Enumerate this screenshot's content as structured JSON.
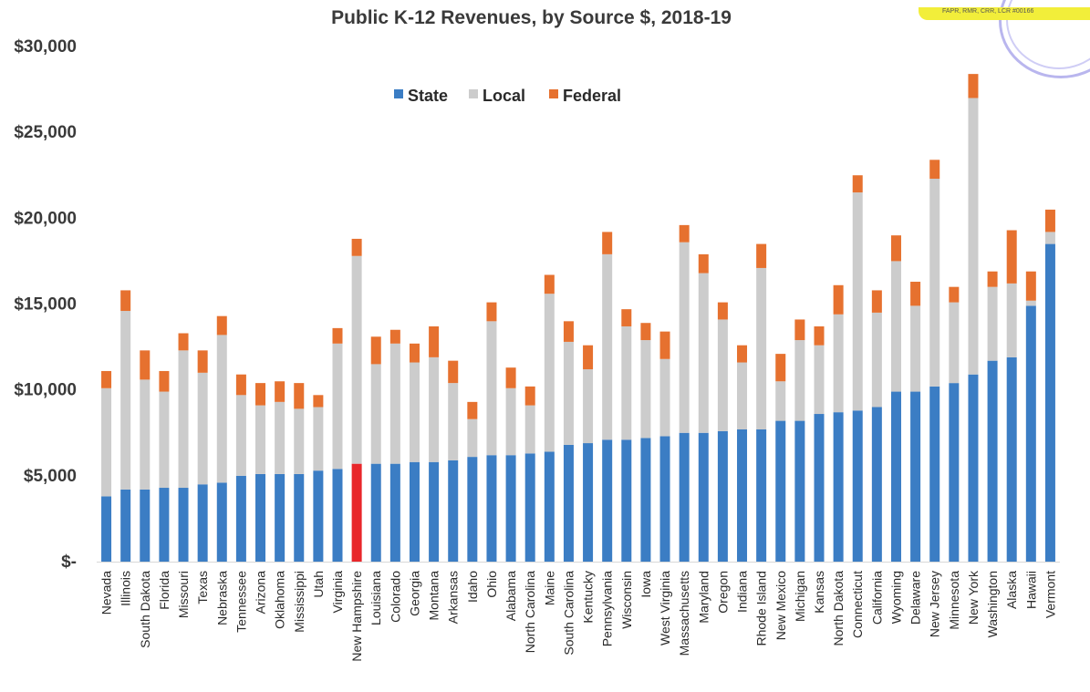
{
  "stamp_text": "FAPR, RMR, CRR, LCR #00166",
  "chart_data": {
    "type": "bar",
    "stacked": true,
    "title": "Public K-12 Revenues, by Source $, 2018-19",
    "xlabel": "",
    "ylabel": "",
    "ylim": [
      0,
      30000
    ],
    "yticks": [
      0,
      5000,
      10000,
      15000,
      20000,
      25000,
      30000
    ],
    "ytick_labels": [
      "$-",
      "$5,000",
      "$10,000",
      "$15,000",
      "$20,000",
      "$25,000",
      "$30,000"
    ],
    "grid": false,
    "legend_position": "top-center",
    "highlight": {
      "category": "New Hampshire",
      "color": "#e8262a"
    },
    "categories": [
      "Nevada",
      "Illinois",
      "South Dakota",
      "Florida",
      "Missouri",
      "Texas",
      "Nebraska",
      "Tennessee",
      "Arizona",
      "Oklahoma",
      "Mississippi",
      "Utah",
      "Virginia",
      "New Hampshire",
      "Louisiana",
      "Colorado",
      "Georgia",
      "Montana",
      "Arkansas",
      "Idaho",
      "Ohio",
      "Alabama",
      "North Carolina",
      "Maine",
      "South Carolina",
      "Kentucky",
      "Pennsylvania",
      "Wisconsin",
      "Iowa",
      "West Virginia",
      "Massachusetts",
      "Maryland",
      "Oregon",
      "Indiana",
      "Rhode Island",
      "New Mexico",
      "Michigan",
      "Kansas",
      "North Dakota",
      "Connecticut",
      "California",
      "Wyoming",
      "Delaware",
      "New Jersey",
      "Minnesota",
      "New York",
      "Washington",
      "Alaska",
      "Hawaii",
      "Vermont"
    ],
    "series": [
      {
        "name": "State",
        "color": "#3b7dc4",
        "values": [
          3800,
          4200,
          4200,
          4300,
          4300,
          4500,
          4600,
          5000,
          5100,
          5100,
          5100,
          5300,
          5400,
          5700,
          5700,
          5700,
          5800,
          5800,
          5900,
          6100,
          6200,
          6200,
          6300,
          6400,
          6800,
          6900,
          7100,
          7100,
          7200,
          7300,
          7500,
          7500,
          7600,
          7700,
          7700,
          8200,
          8200,
          8600,
          8700,
          8800,
          9000,
          9900,
          9900,
          10200,
          10400,
          10900,
          11700,
          11900,
          14900,
          18500
        ]
      },
      {
        "name": "Local",
        "color": "#cccccc",
        "values": [
          6300,
          10400,
          6400,
          5600,
          8000,
          6500,
          8600,
          4700,
          4000,
          4200,
          3800,
          3700,
          7300,
          12100,
          5800,
          7000,
          5800,
          6100,
          4500,
          2200,
          7800,
          3900,
          2800,
          9200,
          6000,
          4300,
          10800,
          6600,
          5700,
          4500,
          11100,
          9300,
          6500,
          3900,
          9400,
          2300,
          4700,
          4000,
          5700,
          12700,
          5500,
          7600,
          5000,
          12100,
          4700,
          16100,
          4300,
          4300,
          300,
          700
        ]
      },
      {
        "name": "Federal",
        "color": "#e6712f",
        "values": [
          1000,
          1200,
          1700,
          1200,
          1000,
          1300,
          1100,
          1200,
          1300,
          1200,
          1500,
          700,
          900,
          1000,
          1600,
          800,
          1100,
          1800,
          1300,
          1000,
          1100,
          1200,
          1100,
          1100,
          1200,
          1400,
          1300,
          1000,
          1000,
          1600,
          1000,
          1100,
          1000,
          1000,
          1400,
          1600,
          1200,
          1100,
          1700,
          1000,
          1300,
          1500,
          1400,
          1100,
          900,
          1400,
          900,
          3100,
          1700,
          1300
        ]
      }
    ]
  }
}
